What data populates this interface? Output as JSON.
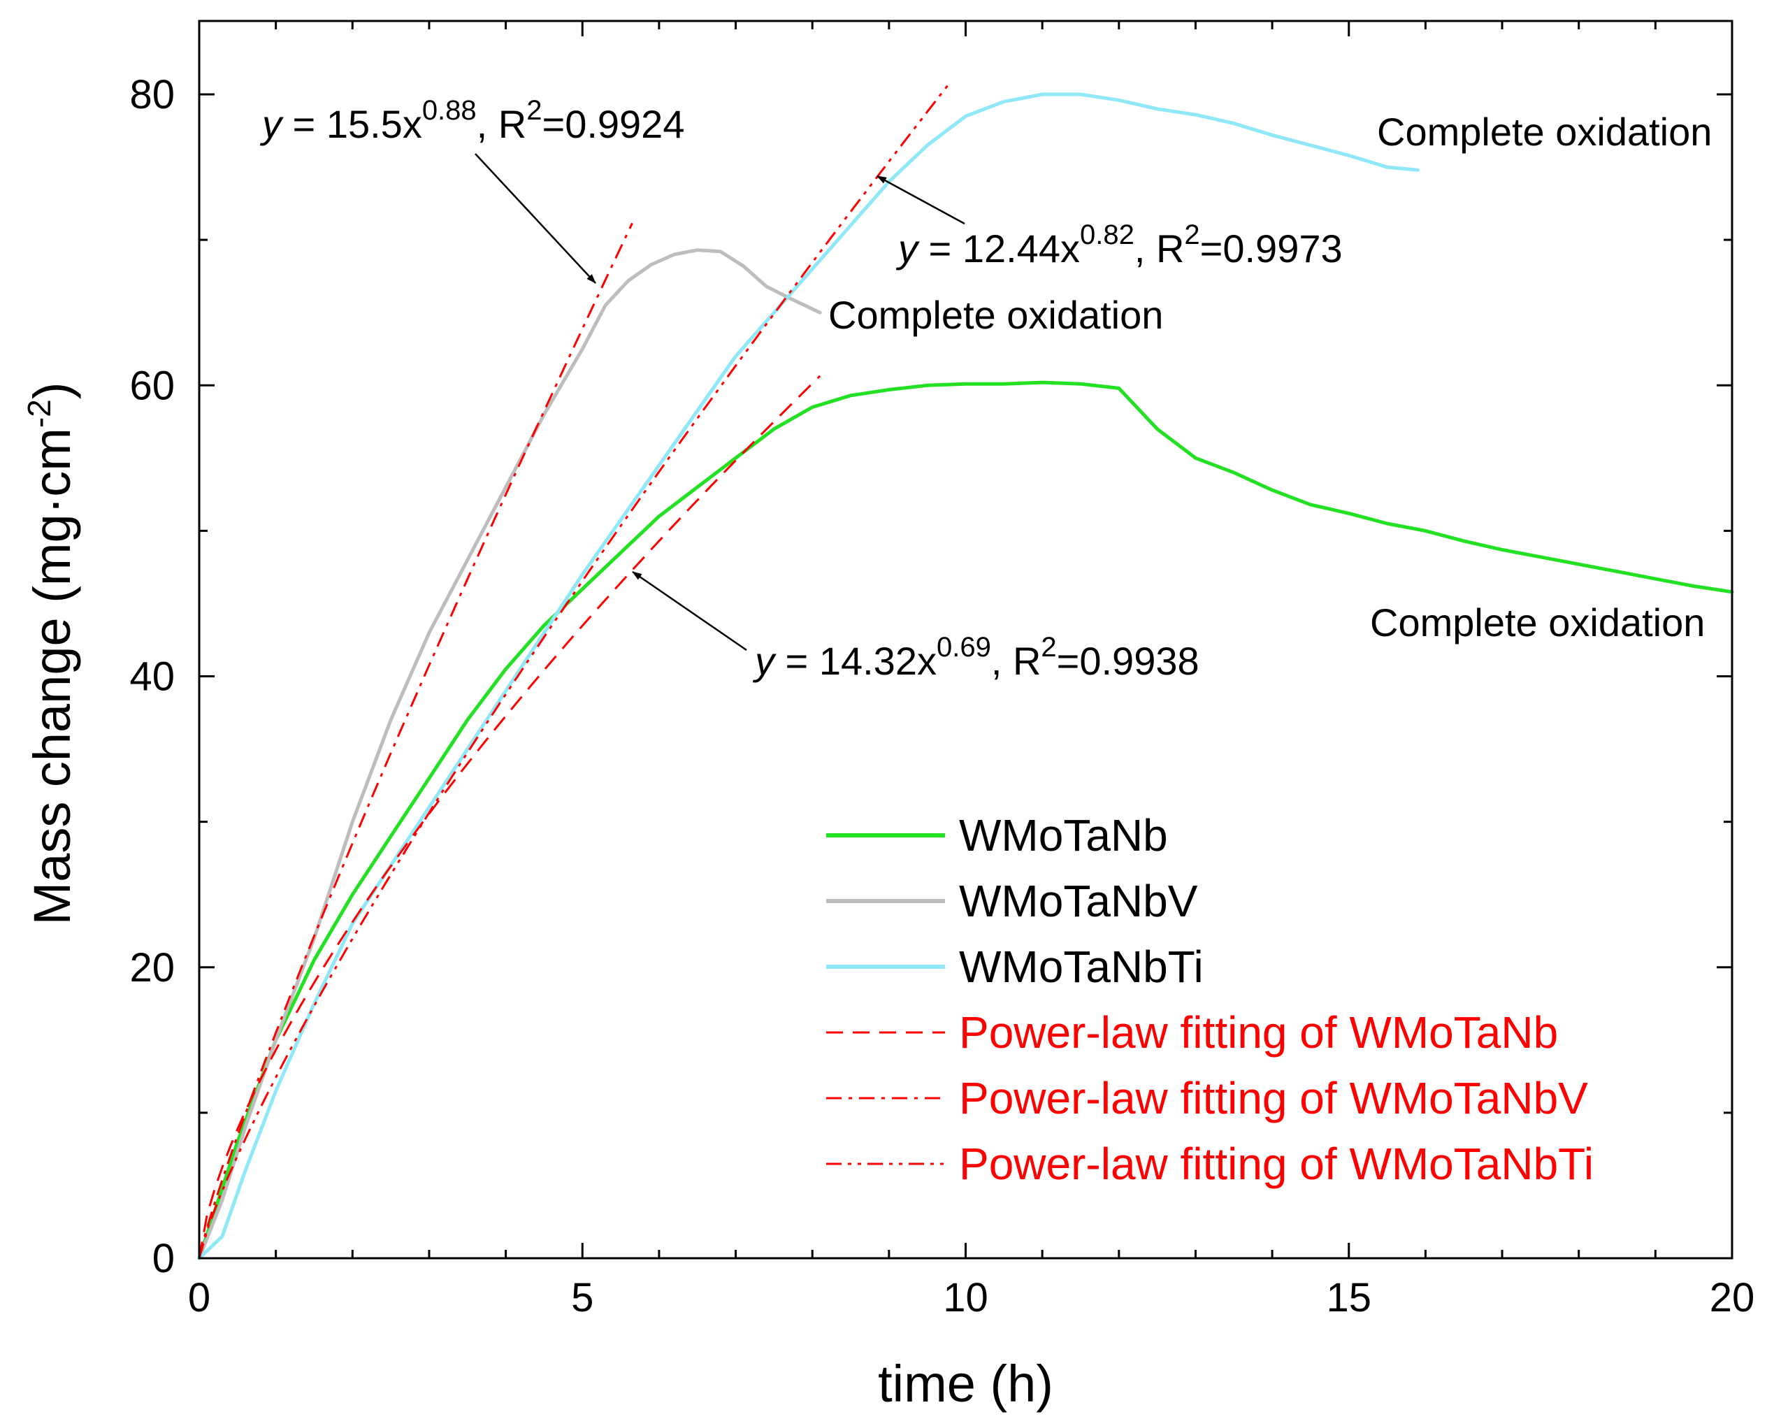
{
  "chart_data": {
    "type": "line",
    "xlabel": "time (h)",
    "ylabel_main": "Mass change (mg·cm",
    "ylabel_sup": "-2",
    "ylabel_close": ")",
    "xlim": [
      0,
      20
    ],
    "ylim": [
      0,
      80
    ],
    "xticks": [
      0,
      5,
      10,
      15,
      20
    ],
    "yticks": [
      0,
      20,
      40,
      60,
      80
    ],
    "xticks_minor_step": 1,
    "yticks_minor_step": 10,
    "grid": false,
    "legend_position": "bottom-right",
    "colors": {
      "WMoTaNb": "#22e022",
      "WMoTaNbV": "#bdbdbd",
      "WMoTaNbTi": "#8fe8f7",
      "fit": "#ff0000",
      "text_fit": "#ff0000"
    },
    "series": [
      {
        "name": "WMoTaNb",
        "style": "solid",
        "color": "#22e022",
        "x": [
          0,
          0.5,
          1,
          1.5,
          2,
          2.5,
          3,
          3.5,
          4,
          4.5,
          5,
          5.5,
          6,
          6.5,
          7,
          7.5,
          8,
          8.5,
          9,
          9.5,
          10,
          10.5,
          11,
          11.5,
          12,
          12.5,
          13,
          13.5,
          14,
          14.5,
          15,
          15.5,
          16,
          16.5,
          17,
          17.5,
          18,
          18.5,
          19,
          19.5,
          20
        ],
        "y": [
          0,
          8,
          15,
          20.5,
          25,
          29,
          33,
          37,
          40.5,
          43.5,
          46,
          48.5,
          51,
          53,
          55,
          57,
          58.5,
          59.3,
          59.7,
          60,
          60.1,
          60.1,
          60.2,
          60.1,
          59.8,
          57,
          55,
          54,
          52.8,
          51.8,
          51.2,
          50.5,
          50,
          49.3,
          48.7,
          48.2,
          47.7,
          47.2,
          46.7,
          46.2,
          45.8
        ]
      },
      {
        "name": "WMoTaNbV",
        "style": "solid",
        "color": "#bdbdbd",
        "x": [
          0,
          0.3,
          0.6,
          1,
          1.5,
          2,
          2.5,
          3,
          3.5,
          4,
          4.5,
          5,
          5.3,
          5.6,
          5.9,
          6.2,
          6.5,
          6.8,
          7.1,
          7.4,
          7.7,
          8.1
        ],
        "y": [
          0,
          4,
          9,
          15,
          22,
          30,
          37,
          43,
          48,
          53,
          58,
          62.5,
          65.5,
          67.2,
          68.3,
          69.0,
          69.3,
          69.2,
          68.2,
          66.8,
          66.0,
          65.0
        ]
      },
      {
        "name": "WMoTaNbTi",
        "style": "solid",
        "color": "#8fe8f7",
        "x": [
          0,
          0.3,
          0.6,
          1,
          1.5,
          2,
          3,
          4,
          5,
          6,
          7,
          8,
          9,
          9.5,
          10,
          10.5,
          11,
          11.5,
          12,
          12.5,
          13,
          13.5,
          14,
          14.5,
          15,
          15.5,
          15.9
        ],
        "y": [
          0,
          1.5,
          6,
          11.5,
          17.5,
          23,
          31,
          39,
          47,
          54.5,
          62,
          68,
          74,
          76.5,
          78.5,
          79.5,
          80,
          80,
          79.6,
          79,
          78.6,
          78,
          77.2,
          76.5,
          75.8,
          75,
          74.8
        ]
      }
    ],
    "fits": [
      {
        "name": "Power-law fitting of WMoTaNb",
        "style": "dash",
        "color": "#ff0000",
        "a": 14.32,
        "b": 0.69,
        "xmax": 8.1
      },
      {
        "name": "Power-law fitting of WMoTaNbV",
        "style": "dashdot",
        "color": "#ff0000",
        "a": 15.5,
        "b": 0.88,
        "xmax": 5.65
      },
      {
        "name": "Power-law fitting of WMoTaNbTi",
        "style": "dashdotdot",
        "color": "#ff0000",
        "a": 12.44,
        "b": 0.82,
        "xmax": 9.8
      }
    ],
    "annotations": {
      "eq_v": {
        "y_prefix": "y",
        "main": " = 15.5x",
        "exp": "0.88",
        "mid": ", R",
        "r_exp": "2",
        "tail": "=0.9924"
      },
      "eq_ti": {
        "y_prefix": "y",
        "main": " = 12.44x",
        "exp": "0.82",
        "mid": ", R",
        "r_exp": "2",
        "tail": "=0.9973"
      },
      "eq_nb": {
        "y_prefix": "y",
        "main": " = 14.32x",
        "exp": "0.69",
        "mid": ", R",
        "r_exp": "2",
        "tail": "=0.9938"
      },
      "complete_v": "Complete oxidation",
      "complete_ti": "Complete oxidation",
      "complete_nb": "Complete oxidation"
    },
    "legend": [
      {
        "label": "WMoTaNb",
        "style": "solid",
        "color": "#22e022",
        "text_color": "#000000"
      },
      {
        "label": "WMoTaNbV",
        "style": "solid",
        "color": "#bdbdbd",
        "text_color": "#000000"
      },
      {
        "label": "WMoTaNbTi",
        "style": "solid",
        "color": "#8fe8f7",
        "text_color": "#000000"
      },
      {
        "label": "Power-law fitting of WMoTaNb",
        "style": "dash",
        "color": "#ff0000",
        "text_color": "#ff0000"
      },
      {
        "label": "Power-law fitting of WMoTaNbV",
        "style": "dashdot",
        "color": "#ff0000",
        "text_color": "#ff0000"
      },
      {
        "label": "Power-law fitting of WMoTaNbTi",
        "style": "dashdotdot",
        "color": "#ff0000",
        "text_color": "#ff0000"
      }
    ]
  }
}
